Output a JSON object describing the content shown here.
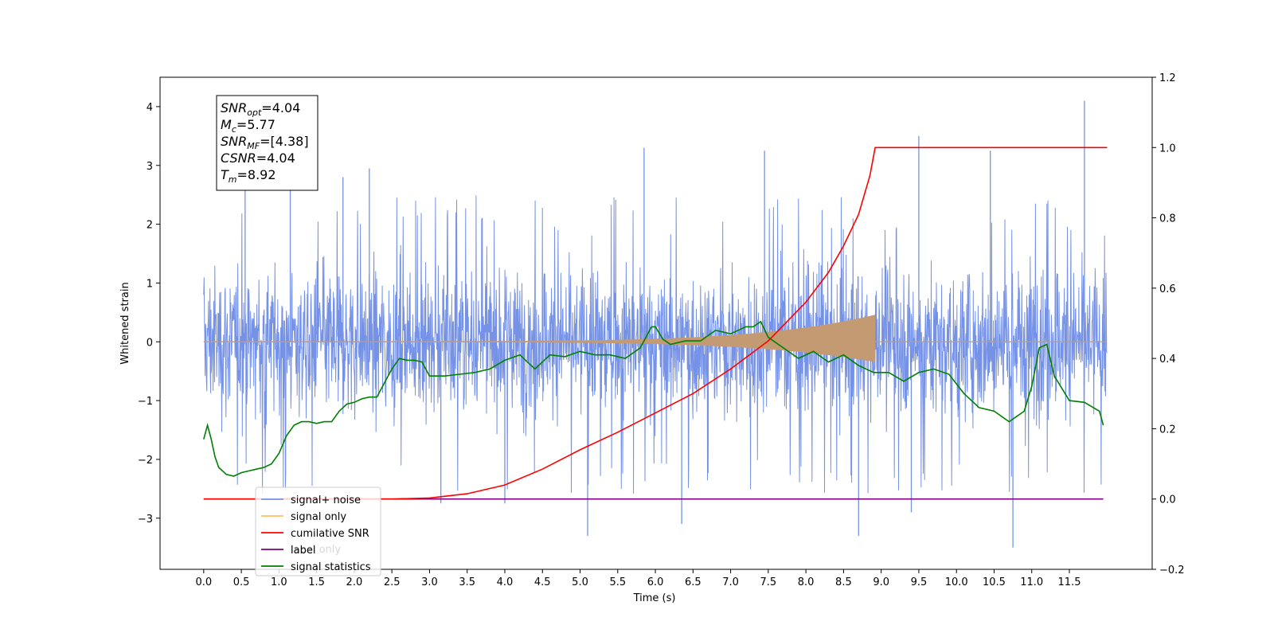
{
  "chart_data": {
    "type": "line",
    "xlabel": "Time (s)",
    "ylabel": "Whitened strain",
    "xlim": [
      -0.58,
      12.6
    ],
    "ylim": [
      -3.87,
      4.5
    ],
    "y2lim": [
      -0.2,
      1.2
    ],
    "x_ticks": [
      "0.0",
      "0.5",
      "1.0",
      "1.5",
      "2.0",
      "2.5",
      "3.0",
      "3.5",
      "4.0",
      "4.5",
      "5.0",
      "5.5",
      "6.0",
      "6.5",
      "7.0",
      "7.5",
      "8.0",
      "8.5",
      "9.0",
      "9.5",
      "10.0",
      "10.5",
      "11.0",
      "11.5"
    ],
    "y_ticks": [
      "4",
      "3",
      "2",
      "1",
      "0",
      "−1",
      "−2",
      "−3"
    ],
    "y_tick_values": [
      4,
      3,
      2,
      1,
      0,
      -1,
      -2,
      -3
    ],
    "y2_ticks": [
      "1.2",
      "1.0",
      "0.8",
      "0.6",
      "0.4",
      "0.2",
      "0.0",
      "−0.2"
    ],
    "y2_tick_values": [
      1.2,
      1.0,
      0.8,
      0.6,
      0.4,
      0.2,
      0.0,
      -0.2
    ],
    "grid": false,
    "legend_position": "lower-left",
    "info_box": {
      "lines": [
        {
          "main": "SNR",
          "sub": "opt",
          "rest": "=4.04"
        },
        {
          "main": "M",
          "sub": "c",
          "rest": "=5.77"
        },
        {
          "main": "SNR",
          "sub": "MF",
          "rest": "=[4.38]"
        },
        {
          "main": "CSNR",
          "sub": "",
          "rest": "=4.04"
        },
        {
          "main": "T",
          "sub": "m",
          "rest": "=8.92"
        }
      ]
    },
    "series": [
      {
        "name": "signal+ noise",
        "axis": "left",
        "color": "#7592e6",
        "kind": "noise",
        "x_range": [
          0.0,
          12.0
        ],
        "band_low": -2.0,
        "band_high": 1.9,
        "outlier_peaks": [
          {
            "x": 0.55,
            "y": 2.9
          },
          {
            "x": 1.15,
            "y": 2.95
          },
          {
            "x": 1.85,
            "y": 2.8
          },
          {
            "x": 2.2,
            "y": 2.95
          },
          {
            "x": 5.85,
            "y": 3.3
          },
          {
            "x": 7.45,
            "y": 3.25
          },
          {
            "x": 9.5,
            "y": 3.5
          },
          {
            "x": 10.45,
            "y": 3.25
          },
          {
            "x": 11.7,
            "y": 4.1
          }
        ],
        "outlier_troughs": [
          {
            "x": 5.1,
            "y": -3.3
          },
          {
            "x": 6.35,
            "y": -3.1
          },
          {
            "x": 8.7,
            "y": -3.3
          },
          {
            "x": 9.4,
            "y": -2.9
          },
          {
            "x": 10.75,
            "y": -3.5
          },
          {
            "x": 3.15,
            "y": -2.75
          },
          {
            "x": 4.0,
            "y": -2.75
          }
        ]
      },
      {
        "name": "signal only",
        "axis": "left",
        "color": "#ffbf66",
        "fill_color": "#c49a73",
        "kind": "chirp",
        "x_range": [
          0.0,
          12.0
        ],
        "merger_time": 8.92,
        "peak_amplitude": 0.45
      },
      {
        "name": "cumilative SNR",
        "axis": "right",
        "color": "#ff0000",
        "x": [
          0.0,
          2.5,
          3.0,
          3.5,
          4.0,
          4.5,
          5.0,
          5.5,
          6.0,
          6.5,
          7.0,
          7.5,
          8.0,
          8.3,
          8.5,
          8.7,
          8.85,
          8.92,
          9.5,
          10.5,
          12.0
        ],
        "values": [
          0.0,
          0.0,
          0.003,
          0.015,
          0.04,
          0.085,
          0.14,
          0.19,
          0.245,
          0.3,
          0.37,
          0.45,
          0.56,
          0.645,
          0.72,
          0.81,
          0.92,
          1.0,
          1.0,
          1.0,
          1.0
        ]
      },
      {
        "name": "label",
        "axis": "right",
        "color": "#800080",
        "x": [
          0.0,
          11.95
        ],
        "values": [
          0.0,
          0.0
        ]
      },
      {
        "name": "label only",
        "axis": "right",
        "color": "#d3d3d3",
        "x": [],
        "values": []
      },
      {
        "name": "signal statistics",
        "axis": "right",
        "color": "#008000",
        "x": [
          0.0,
          0.05,
          0.1,
          0.15,
          0.2,
          0.3,
          0.4,
          0.5,
          0.6,
          0.7,
          0.8,
          0.9,
          1.0,
          1.1,
          1.2,
          1.3,
          1.4,
          1.5,
          1.6,
          1.7,
          1.8,
          1.9,
          2.0,
          2.1,
          2.2,
          2.3,
          2.4,
          2.5,
          2.6,
          2.7,
          2.8,
          2.9,
          3.0,
          3.2,
          3.4,
          3.6,
          3.8,
          4.0,
          4.2,
          4.4,
          4.6,
          4.8,
          5.0,
          5.2,
          5.4,
          5.6,
          5.8,
          5.95,
          6.0,
          6.1,
          6.2,
          6.4,
          6.6,
          6.8,
          7.0,
          7.2,
          7.3,
          7.4,
          7.5,
          7.7,
          7.9,
          8.1,
          8.3,
          8.5,
          8.7,
          8.9,
          9.1,
          9.3,
          9.5,
          9.7,
          9.9,
          10.1,
          10.3,
          10.5,
          10.7,
          10.9,
          11.0,
          11.1,
          11.2,
          11.3,
          11.5,
          11.7,
          11.9,
          11.95
        ],
        "values": [
          0.17,
          0.21,
          0.17,
          0.12,
          0.09,
          0.07,
          0.065,
          0.075,
          0.08,
          0.085,
          0.09,
          0.1,
          0.13,
          0.18,
          0.21,
          0.22,
          0.22,
          0.215,
          0.22,
          0.22,
          0.25,
          0.27,
          0.275,
          0.285,
          0.29,
          0.29,
          0.33,
          0.37,
          0.4,
          0.395,
          0.395,
          0.39,
          0.35,
          0.35,
          0.355,
          0.36,
          0.37,
          0.395,
          0.41,
          0.37,
          0.41,
          0.405,
          0.42,
          0.41,
          0.41,
          0.4,
          0.43,
          0.49,
          0.49,
          0.455,
          0.44,
          0.45,
          0.45,
          0.48,
          0.47,
          0.49,
          0.49,
          0.505,
          0.46,
          0.43,
          0.4,
          0.42,
          0.39,
          0.41,
          0.38,
          0.36,
          0.36,
          0.335,
          0.36,
          0.37,
          0.355,
          0.3,
          0.26,
          0.25,
          0.22,
          0.25,
          0.32,
          0.43,
          0.44,
          0.35,
          0.28,
          0.275,
          0.25,
          0.21
        ]
      }
    ]
  }
}
